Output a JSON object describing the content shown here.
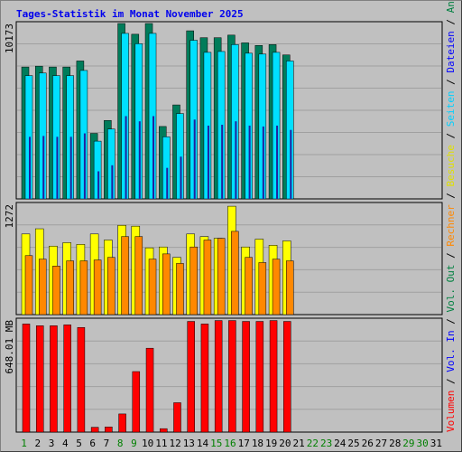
{
  "title": "Tages-Statistik im Monat November 2025",
  "colors": {
    "anfragen": "#007c5a",
    "dateien": "#00e0ff",
    "seiten": "#2020a0",
    "besuche": "#ffff00",
    "rechner": "#ff8800",
    "volumen": "#ff0000",
    "weekend_label": "#008000",
    "weekday_label": "#000000"
  },
  "right_labels": {
    "top": [
      {
        "text": "Anfragen",
        "color": "#008040"
      },
      {
        "text": " / ",
        "color": "#000000"
      },
      {
        "text": "Dateien",
        "color": "#0000ff"
      },
      {
        "text": " / ",
        "color": "#000000"
      },
      {
        "text": "Seiten",
        "color": "#00d0ff"
      },
      {
        "text": " / ",
        "color": "#000000"
      },
      {
        "text": "Besuche",
        "color": "#e0e000"
      },
      {
        "text": " / ",
        "color": "#000000"
      },
      {
        "text": "Rechner",
        "color": "#ff8800"
      },
      {
        "text": " / ",
        "color": "#000000"
      },
      {
        "text": "Vol. Out",
        "color": "#008040"
      },
      {
        "text": " / ",
        "color": "#000000"
      },
      {
        "text": "Vol. In",
        "color": "#0000ff"
      },
      {
        "text": " / ",
        "color": "#000000"
      },
      {
        "text": "Volumen",
        "color": "#ff0000"
      }
    ]
  },
  "chart_data": [
    {
      "type": "bar",
      "panel": "hits",
      "ymax_label": "10173",
      "ymax": 10173,
      "categories": [
        "1",
        "2",
        "3",
        "4",
        "5",
        "6",
        "7",
        "8",
        "9",
        "10",
        "11",
        "12",
        "13",
        "14",
        "15",
        "16",
        "17",
        "18",
        "19",
        "20",
        "21",
        "22",
        "23",
        "24",
        "25",
        "26",
        "27",
        "28",
        "29",
        "30",
        "31"
      ],
      "series": [
        {
          "name": "Anfragen",
          "values": [
            7650,
            7700,
            7650,
            7650,
            8000,
            3800,
            4550,
            10173,
            9550,
            10173,
            4200,
            5450,
            9750,
            9350,
            9350,
            9500,
            9050,
            8900,
            8950,
            8350,
            0,
            0,
            0,
            0,
            0,
            0,
            0,
            0,
            0,
            0,
            0
          ]
        },
        {
          "name": "Dateien",
          "values": [
            7150,
            7300,
            7150,
            7150,
            7450,
            3350,
            4050,
            9600,
            9000,
            9600,
            3600,
            4950,
            9200,
            8500,
            8550,
            8950,
            8450,
            8400,
            8500,
            8000,
            0,
            0,
            0,
            0,
            0,
            0,
            0,
            0,
            0,
            0,
            0
          ]
        },
        {
          "name": "Seiten",
          "values": [
            3600,
            3650,
            3600,
            3600,
            3800,
            1600,
            1950,
            4800,
            4500,
            4800,
            1800,
            2450,
            4600,
            4250,
            4300,
            4500,
            4250,
            4200,
            4250,
            4000,
            0,
            0,
            0,
            0,
            0,
            0,
            0,
            0,
            0,
            0,
            0
          ]
        }
      ]
    },
    {
      "type": "bar",
      "panel": "visits",
      "ymax_label": "1272",
      "ymax": 1272,
      "categories": [
        "1",
        "2",
        "3",
        "4",
        "5",
        "6",
        "7",
        "8",
        "9",
        "10",
        "11",
        "12",
        "13",
        "14",
        "15",
        "16",
        "17",
        "18",
        "19",
        "20",
        "21",
        "22",
        "23",
        "24",
        "25",
        "26",
        "27",
        "28",
        "29",
        "30",
        "31"
      ],
      "series": [
        {
          "name": "Besuche",
          "values": [
            930,
            990,
            790,
            830,
            810,
            930,
            860,
            1030,
            1020,
            770,
            780,
            660,
            930,
            900,
            880,
            1250,
            780,
            870,
            800,
            850,
            0,
            0,
            0,
            0,
            0,
            0,
            0,
            0,
            0,
            0,
            0
          ]
        },
        {
          "name": "Rechner",
          "values": [
            680,
            640,
            560,
            620,
            620,
            630,
            660,
            900,
            900,
            640,
            700,
            590,
            780,
            860,
            880,
            960,
            660,
            600,
            640,
            620,
            0,
            0,
            0,
            0,
            0,
            0,
            0,
            0,
            0,
            0,
            0
          ]
        }
      ]
    },
    {
      "type": "bar",
      "panel": "volume",
      "ymax_label": "648.01 MB",
      "ymax": 648.01,
      "categories": [
        "1",
        "2",
        "3",
        "4",
        "5",
        "6",
        "7",
        "8",
        "9",
        "10",
        "11",
        "12",
        "13",
        "14",
        "15",
        "16",
        "17",
        "18",
        "19",
        "20",
        "21",
        "22",
        "23",
        "24",
        "25",
        "26",
        "27",
        "28",
        "29",
        "30",
        "31"
      ],
      "series": [
        {
          "name": "Volumen",
          "values": [
            625,
            615,
            615,
            620,
            605,
            28,
            30,
            105,
            350,
            485,
            20,
            170,
            640,
            625,
            645,
            645,
            640,
            640,
            645,
            640,
            0,
            0,
            0,
            0,
            0,
            0,
            0,
            0,
            0,
            0,
            0
          ]
        }
      ]
    }
  ],
  "weekend_days": [
    1,
    8,
    9,
    15,
    16,
    22,
    23,
    29,
    30
  ]
}
